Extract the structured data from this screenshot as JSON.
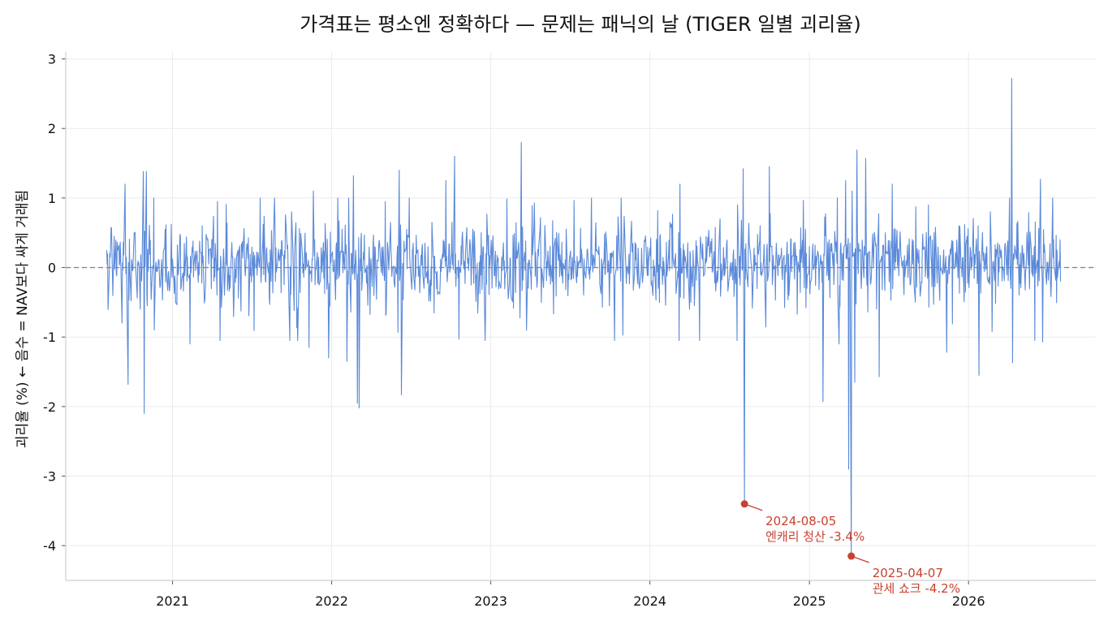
{
  "chart_data": {
    "type": "line",
    "title": "가격표는 평소엔 정확하다 — 문제는 패닉의 날 (TIGER 일별 괴리율)",
    "ylabel": "괴리율 (%)  ← 음수 = NAV보다 싸게 거래됨",
    "xlabel": "",
    "ylim": [
      -4.5,
      3.1
    ],
    "xlim": [
      "2020-05-01",
      "2026-10-20"
    ],
    "yticks": [
      3,
      2,
      1,
      0,
      -1,
      -2,
      -3,
      -4
    ],
    "ytick_labels": [
      "3",
      "2",
      "1",
      "0",
      "-1",
      "-2",
      "-3",
      "-4"
    ],
    "xticks": [
      "2021-01-01",
      "2022-01-01",
      "2023-01-01",
      "2024-01-01",
      "2025-01-01",
      "2026-01-01"
    ],
    "xtick_labels": [
      "2021",
      "2022",
      "2023",
      "2024",
      "2025",
      "2026"
    ],
    "grid": true,
    "reference_line": 0,
    "series": [
      {
        "color": "#5b8ad9",
        "start": "2020-08-03",
        "end": "2026-07-31",
        "points": [
          [
            "2020-08-03",
            0.25
          ],
          [
            "2020-08-20",
            0.45
          ],
          [
            "2020-09-07",
            -0.8
          ],
          [
            "2020-09-14",
            1.2
          ],
          [
            "2020-09-21",
            -1.68
          ],
          [
            "2020-10-05",
            0.5
          ],
          [
            "2020-10-19",
            -0.6
          ],
          [
            "2020-10-26",
            1.38
          ],
          [
            "2020-10-28",
            -2.1
          ],
          [
            "2020-11-02",
            1.38
          ],
          [
            "2020-11-20",
            -0.9
          ],
          [
            "2020-12-15",
            0.55
          ],
          [
            "2021-01-08",
            -0.5
          ],
          [
            "2021-02-10",
            -1.1
          ],
          [
            "2021-03-10",
            0.6
          ],
          [
            "2021-05-20",
            -0.3
          ],
          [
            "2021-06-20",
            0.3
          ],
          [
            "2021-08-15",
            -0.2
          ],
          [
            "2021-10-01",
            0.8
          ],
          [
            "2021-11-10",
            -1.15
          ],
          [
            "2021-11-20",
            1.1
          ],
          [
            "2021-12-25",
            -1.3
          ],
          [
            "2022-01-15",
            1.0
          ],
          [
            "2022-02-05",
            -1.35
          ],
          [
            "2022-02-20",
            1.32
          ],
          [
            "2022-03-01",
            -1.95
          ],
          [
            "2022-03-05",
            -2.02
          ],
          [
            "2022-04-10",
            0.3
          ],
          [
            "2022-06-05",
            1.4
          ],
          [
            "2022-06-10",
            -1.83
          ],
          [
            "2022-08-01",
            -0.3
          ],
          [
            "2022-09-20",
            1.25
          ],
          [
            "2022-10-10",
            1.6
          ],
          [
            "2022-10-20",
            -1.03
          ],
          [
            "2022-12-10",
            0.5
          ],
          [
            "2023-02-10",
            -0.45
          ],
          [
            "2023-03-12",
            1.8
          ],
          [
            "2023-05-01",
            -0.2
          ],
          [
            "2023-08-20",
            1.0
          ],
          [
            "2023-09-30",
            -0.55
          ],
          [
            "2023-12-20",
            0.4
          ],
          [
            "2024-01-20",
            -0.3
          ],
          [
            "2024-03-10",
            1.2
          ],
          [
            "2024-04-01",
            -0.6
          ],
          [
            "2024-06-10",
            0.7
          ],
          [
            "2024-07-20",
            0.9
          ],
          [
            "2024-08-02",
            1.42
          ],
          [
            "2024-08-05",
            -3.4
          ],
          [
            "2024-08-12",
            -0.2
          ],
          [
            "2024-09-10",
            0.6
          ],
          [
            "2024-10-01",
            1.45
          ],
          [
            "2024-11-15",
            -0.4
          ],
          [
            "2025-01-01",
            0.3
          ],
          [
            "2025-02-01",
            -1.93
          ],
          [
            "2025-02-15",
            0.4
          ],
          [
            "2025-03-10",
            -1.1
          ],
          [
            "2025-03-25",
            1.25
          ],
          [
            "2025-04-01",
            -2.9
          ],
          [
            "2025-04-07",
            -4.15
          ],
          [
            "2025-04-09",
            1.1
          ],
          [
            "2025-04-15",
            -1.65
          ],
          [
            "2025-04-20",
            1.69
          ],
          [
            "2025-05-10",
            1.57
          ],
          [
            "2025-06-10",
            -1.57
          ],
          [
            "2025-07-10",
            1.2
          ],
          [
            "2025-09-01",
            -0.5
          ],
          [
            "2025-10-01",
            0.9
          ],
          [
            "2025-11-12",
            -1.22
          ],
          [
            "2025-12-10",
            0.6
          ],
          [
            "2026-01-25",
            -1.55
          ],
          [
            "2026-02-20",
            0.8
          ],
          [
            "2026-04-05",
            1.0
          ],
          [
            "2026-04-10",
            2.72
          ],
          [
            "2026-04-12",
            -1.37
          ],
          [
            "2026-05-15",
            0.5
          ],
          [
            "2026-06-15",
            1.27
          ],
          [
            "2026-06-20",
            -1.07
          ],
          [
            "2026-07-15",
            0.4
          ],
          [
            "2026-07-31",
            -0.2
          ]
        ]
      }
    ],
    "annotations": [
      {
        "x": "2024-08-05",
        "y": -3.4,
        "label": "2024-08-05\n엔캐리 청산 -3.4%",
        "color": "#c8412f"
      },
      {
        "x": "2025-04-07",
        "y": -4.15,
        "label": "2025-04-07\n관세 쇼크 -4.2%",
        "color": "#c8412f"
      }
    ]
  }
}
